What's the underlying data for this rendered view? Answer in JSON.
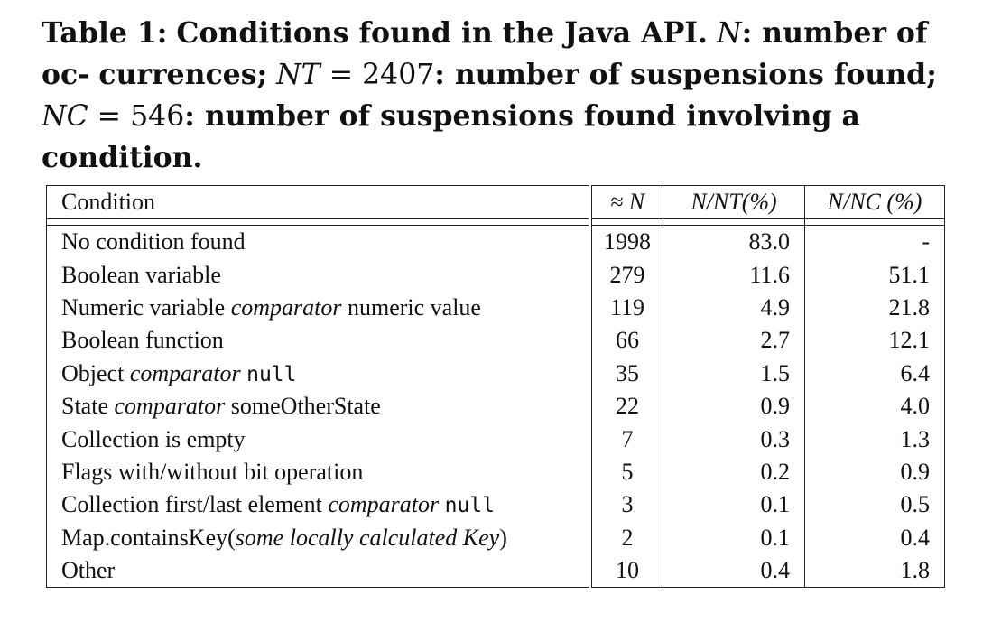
{
  "caption": {
    "label": "Table 1:",
    "title": "Conditions found in the Java API.",
    "n_sym": "N",
    "n_desc": ": number of oc-",
    "line2_start": "currences;",
    "nt_sym": "NT",
    "nt_eq": " = 2407",
    "nt_desc": ": number of suspensions found;",
    "nc_sym": "NC",
    "nc_eq": " =",
    "line3_num": "546",
    "nc_desc": ": number of suspensions found involving a condition."
  },
  "table": {
    "headers": {
      "condition": "Condition",
      "n": "≈ N",
      "n_nt": "N/NT(%)",
      "n_nc": "N/NC (%)"
    },
    "rows": [
      {
        "parts": [
          {
            "t": "No condition found",
            "s": ""
          }
        ],
        "n": "1998",
        "nt": "83.0",
        "nc": "-"
      },
      {
        "parts": [
          {
            "t": "Boolean variable",
            "s": ""
          }
        ],
        "n": "279",
        "nt": "11.6",
        "nc": "51.1"
      },
      {
        "parts": [
          {
            "t": "Numeric variable ",
            "s": ""
          },
          {
            "t": "comparator",
            "s": "em"
          },
          {
            "t": " numeric value",
            "s": ""
          }
        ],
        "n": "119",
        "nt": "4.9",
        "nc": "21.8"
      },
      {
        "parts": [
          {
            "t": "Boolean function",
            "s": ""
          }
        ],
        "n": "66",
        "nt": "2.7",
        "nc": "12.1"
      },
      {
        "parts": [
          {
            "t": "Object ",
            "s": ""
          },
          {
            "t": "comparator",
            "s": "em"
          },
          {
            "t": " ",
            "s": ""
          },
          {
            "t": "null",
            "s": "mono"
          }
        ],
        "n": "35",
        "nt": "1.5",
        "nc": "6.4"
      },
      {
        "parts": [
          {
            "t": "State ",
            "s": ""
          },
          {
            "t": "comparator",
            "s": "em"
          },
          {
            "t": " someOtherState",
            "s": ""
          }
        ],
        "n": "22",
        "nt": "0.9",
        "nc": "4.0"
      },
      {
        "parts": [
          {
            "t": "Collection is empty",
            "s": ""
          }
        ],
        "n": "7",
        "nt": "0.3",
        "nc": "1.3"
      },
      {
        "parts": [
          {
            "t": "Flags with/without bit operation",
            "s": ""
          }
        ],
        "n": "5",
        "nt": "0.2",
        "nc": "0.9"
      },
      {
        "parts": [
          {
            "t": "Collection first/last element ",
            "s": ""
          },
          {
            "t": "comparator",
            "s": "em"
          },
          {
            "t": " ",
            "s": ""
          },
          {
            "t": "null",
            "s": "mono"
          }
        ],
        "n": "3",
        "nt": "0.1",
        "nc": "0.5"
      },
      {
        "parts": [
          {
            "t": "Map.containsKey(",
            "s": ""
          },
          {
            "t": "some locally calculated Key",
            "s": "em"
          },
          {
            "t": ")",
            "s": ""
          }
        ],
        "n": "2",
        "nt": "0.1",
        "nc": "0.4"
      },
      {
        "parts": [
          {
            "t": "Other",
            "s": ""
          }
        ],
        "n": "10",
        "nt": "0.4",
        "nc": "1.8"
      }
    ]
  }
}
